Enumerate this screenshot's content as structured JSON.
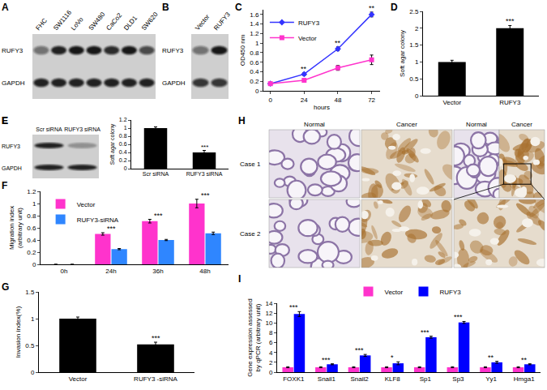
{
  "panels": [
    {
      "label": "A",
      "type": "blot",
      "lanes": [
        "FHC",
        "SW1116",
        "LoVo",
        "SW480",
        "CaCo2",
        "DLD1",
        "SW620"
      ],
      "rows": [
        "RUFY3",
        "GAPDH"
      ],
      "bands": [
        [
          0.5,
          0.9,
          0.95,
          0.95,
          0.85,
          0.95,
          0.7
        ],
        [
          0.9,
          0.9,
          0.9,
          0.9,
          0.9,
          0.9,
          0.9
        ]
      ]
    },
    {
      "label": "B",
      "type": "blot",
      "lanes": [
        "Vector",
        "RUFY3"
      ],
      "rows": [
        "RUFY3",
        "GAPDH"
      ],
      "bands": [
        [
          0.5,
          0.95
        ],
        [
          0.8,
          0.8
        ]
      ]
    },
    {
      "label": "E",
      "type": "blot",
      "lanes": [
        "Scr siRNA",
        "RUFY3 siRNA"
      ],
      "rows": [
        "RUFY3",
        "GAPDH"
      ],
      "bands": [
        [
          0.9,
          0.3
        ],
        [
          0.9,
          0.9
        ]
      ]
    },
    {
      "label": "H",
      "type": "images",
      "columns": [
        "Normal",
        "Cancer",
        "Normal",
        "Cancer"
      ],
      "rows": [
        "Case 1",
        "Case 2"
      ]
    }
  ],
  "chart_data": [
    {
      "label": "C",
      "type": "line",
      "x": [
        0,
        24,
        48,
        72
      ],
      "xlim": [
        -5,
        78
      ],
      "xticks": [
        0,
        24,
        48,
        72
      ],
      "xlabel": "hours",
      "ylabel": "OD450 nm",
      "ylim": [
        0,
        1.7
      ],
      "yticks": [
        0,
        0.2,
        0.4,
        0.6,
        0.8,
        1,
        1.2,
        1.4,
        1.6
      ],
      "grid": false,
      "legend": "top-left",
      "series": [
        {
          "name": "RUFY3",
          "color": "#3333ff",
          "marker": "diamond",
          "values": [
            0.15,
            0.35,
            0.88,
            1.6
          ],
          "errors": [
            0.02,
            0.03,
            0.04,
            0.05
          ]
        },
        {
          "name": "Vector",
          "color": "#ff33cc",
          "marker": "square",
          "values": [
            0.15,
            0.22,
            0.48,
            0.65
          ],
          "errors": [
            0.02,
            0.03,
            0.05,
            0.1
          ]
        }
      ],
      "significance": [
        null,
        "**",
        "**",
        "**"
      ]
    },
    {
      "label": "D",
      "type": "bar",
      "categories": [
        "Vector",
        "RUFY3"
      ],
      "values": [
        1,
        2
      ],
      "errors": [
        0.05,
        0.08
      ],
      "color": "#000000",
      "ylabel": "Soft agar colony",
      "ylim": [
        0,
        2.5
      ],
      "yticks": [
        0,
        0.5,
        1,
        1.5,
        2,
        2.5
      ],
      "grid": false,
      "significance": [
        null,
        "***"
      ]
    },
    {
      "label": "E",
      "type": "bar",
      "categories": [
        "Scr siRNA",
        "RUFY3 siRNA"
      ],
      "values": [
        1,
        0.4
      ],
      "errors": [
        0.03,
        0.05
      ],
      "color": "#000000",
      "ylabel": "Soft agar colony",
      "ylim": [
        0,
        1.2
      ],
      "yticks": [
        0,
        0.2,
        0.4,
        0.6,
        0.8,
        1,
        1.2
      ],
      "grid": false,
      "significance": [
        null,
        "***"
      ]
    },
    {
      "label": "F",
      "type": "bar",
      "categories": [
        "0h",
        "24h",
        "36h",
        "48h"
      ],
      "ylabel": "Migration index (arbitrary unit)",
      "ylim": [
        0,
        1.2
      ],
      "yticks": [
        0,
        0.2,
        0.4,
        0.6,
        0.8,
        1,
        1.2
      ],
      "grid": false,
      "legend": "top-left",
      "series": [
        {
          "name": "Vector",
          "color": "#ff33cc",
          "values": [
            0,
            0.5,
            0.71,
            1.0
          ],
          "errors": [
            0,
            0.02,
            0.03,
            0.07
          ]
        },
        {
          "name": "RUFY3-siRNA",
          "color": "#2f86ff",
          "values": [
            0,
            0.25,
            0.4,
            0.51
          ],
          "errors": [
            0,
            0.01,
            0.01,
            0.02
          ]
        }
      ],
      "significance": [
        null,
        "***",
        "***",
        "***"
      ]
    },
    {
      "label": "G",
      "type": "bar",
      "categories": [
        "Vector",
        "RUFY3 -siRNA"
      ],
      "values": [
        1,
        0.52
      ],
      "errors": [
        0.03,
        0.04
      ],
      "color": "#000000",
      "ylabel": "Invasion index(%)",
      "ylim": [
        0,
        1.5
      ],
      "yticks": [
        0,
        0.5,
        1,
        1.5
      ],
      "grid": false,
      "significance": [
        null,
        "***"
      ]
    },
    {
      "label": "I",
      "type": "bar",
      "categories": [
        "FOXK1",
        "Snail1",
        "Snail2",
        "KLF8",
        "Sp1",
        "Sp3",
        "Yy1",
        "Hmga1"
      ],
      "ylabel": "Gene expression assessed by qPCR (arbitrary unit)",
      "ylim": [
        0,
        14
      ],
      "yticks": [
        0,
        2,
        4,
        6,
        8,
        10,
        12,
        14
      ],
      "grid": false,
      "legend": "top",
      "series": [
        {
          "name": "Vector",
          "color": "#ff33cc",
          "values": [
            1,
            1,
            1,
            1,
            1,
            1,
            1,
            1
          ],
          "errors": [
            0.1,
            0.1,
            0.1,
            0.1,
            0.1,
            0.1,
            0.1,
            0.1
          ]
        },
        {
          "name": "RUFY3",
          "color": "#0000ff",
          "values": [
            11.8,
            1.6,
            3.4,
            1.8,
            7.1,
            10.1,
            2.0,
            1.6
          ],
          "errors": [
            0.5,
            0.1,
            0.2,
            0.3,
            0.2,
            0.2,
            0.2,
            0.1
          ]
        }
      ],
      "significance": [
        "***",
        "***",
        "***",
        "*",
        "***",
        "***",
        "**",
        "**"
      ]
    }
  ]
}
